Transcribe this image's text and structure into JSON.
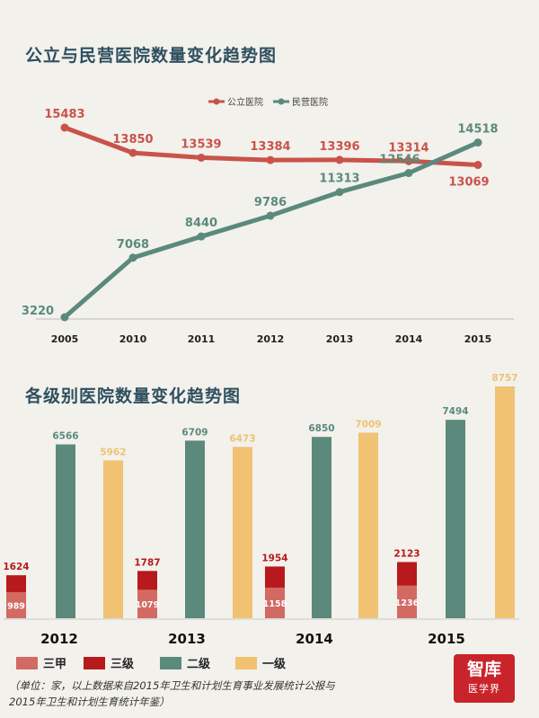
{
  "chart_data": [
    {
      "type": "line",
      "title": "公立与民营医院数量变化趋势图",
      "categories": [
        "2005",
        "2010",
        "2011",
        "2012",
        "2013",
        "2014",
        "2015"
      ],
      "series": [
        {
          "name": "公立医院",
          "values": [
            15483,
            13850,
            13539,
            13384,
            13396,
            13314,
            13069
          ],
          "color": "#c9534a"
        },
        {
          "name": "民营医院",
          "values": [
            3220,
            7068,
            8440,
            9786,
            11313,
            12546,
            14518
          ],
          "color": "#5b8a7d"
        }
      ],
      "legend": "top-right",
      "grid": false
    },
    {
      "type": "bar",
      "title": "各级别医院数量变化趋势图",
      "categories": [
        "2012",
        "2013",
        "2014",
        "2015"
      ],
      "series": [
        {
          "name": "三级",
          "values": [
            1624,
            1787,
            1954,
            2123
          ],
          "color": "#b8191c"
        },
        {
          "name": "三甲",
          "values": [
            989,
            1079,
            1158,
            1236
          ],
          "color": "#d26a63"
        },
        {
          "name": "二级",
          "values": [
            6566,
            6709,
            6850,
            7494
          ],
          "color": "#5b8a7d"
        },
        {
          "name": "一级",
          "values": [
            5962,
            6473,
            7009,
            8757
          ],
          "color": "#f0c272"
        }
      ],
      "note": "三甲 is a subset of 三级",
      "legend": "bottom-left",
      "grid": false
    }
  ],
  "footnote_line1": "（单位：家，以上数据来自2015年卫生和计划生育事业发展统计公报与",
  "footnote_line2": "2015年卫生和计划生育统计年鉴）",
  "logo": {
    "line1": "智库",
    "line2": "医学界"
  }
}
